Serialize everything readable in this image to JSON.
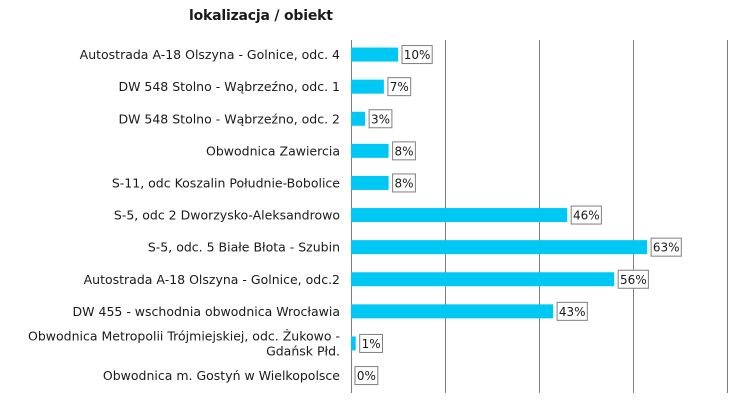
{
  "chart_data": {
    "type": "bar",
    "orientation": "horizontal",
    "title": "lokalizacja / obiekt",
    "categories": [
      [
        "Autostrada A-18 Olszyna - Golnice, odc. 4"
      ],
      [
        "DW 548 Stolno - Wąbrzeźno, odc. 1"
      ],
      [
        "DW 548 Stolno - Wąbrzeźno, odc. 2"
      ],
      [
        "Obwodnica Zawiercia"
      ],
      [
        "S-11, odc Koszalin Południe-Bobolice"
      ],
      [
        "S-5, odc 2 Dworzysko-Aleksandrowo"
      ],
      [
        "S-5, odc. 5 Białe Błota - Szubin"
      ],
      [
        "Autostrada A-18 Olszyna - Golnice, odc.2"
      ],
      [
        "DW 455 - wschodnia obwodnica Wrocławia"
      ],
      [
        "Obwodnica Metropolii Trójmiejskiej, odc. Żukowo -",
        "Gdańsk Płd."
      ],
      [
        "Obwodnica m. Gostyń w Wielkopolsce"
      ]
    ],
    "values": [
      10,
      7,
      3,
      8,
      8,
      46,
      63,
      56,
      43,
      1,
      0
    ],
    "value_labels": [
      "10%",
      "7%",
      "3%",
      "8%",
      "8%",
      "46%",
      "63%",
      "56%",
      "43%",
      "1%",
      "0%"
    ],
    "xlim": [
      0,
      80
    ],
    "x_gridlines": [
      0,
      20,
      40,
      60,
      80
    ],
    "grid": true,
    "bar_color": "#00c8f5",
    "grid_color": "#7f7f7f"
  }
}
